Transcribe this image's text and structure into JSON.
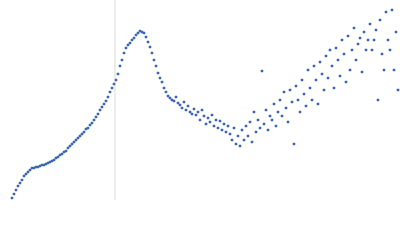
{
  "chart_data": {
    "type": "scatter",
    "color": "#3b66b5",
    "xlim": [
      0,
      400
    ],
    "ylim": [
      0,
      200
    ],
    "x": [
      12,
      14,
      16,
      18,
      20,
      22,
      24,
      26,
      28,
      30,
      32,
      34,
      36,
      38,
      40,
      42,
      44,
      46,
      48,
      50,
      52,
      54,
      56,
      58,
      60,
      62,
      64,
      66,
      68,
      70,
      72,
      74,
      76,
      78,
      80,
      82,
      84,
      86,
      88,
      90,
      92,
      94,
      96,
      98,
      100,
      102,
      104,
      106,
      108,
      110,
      112,
      114,
      116,
      118,
      120,
      122,
      124,
      126,
      128,
      130,
      132,
      134,
      136,
      138,
      140,
      142,
      144,
      146,
      148,
      150,
      152,
      154,
      156,
      158,
      160,
      162,
      164,
      166,
      168,
      170,
      172,
      174,
      176,
      178,
      180,
      182,
      184,
      186,
      188,
      190,
      192,
      194,
      196,
      198,
      200,
      202,
      204,
      206,
      208,
      210,
      212,
      214,
      216,
      218,
      220,
      222,
      224,
      226,
      228,
      230,
      232,
      234,
      236,
      238,
      240,
      242,
      244,
      246,
      248,
      250,
      252,
      254,
      256,
      258,
      260,
      262,
      264,
      266,
      268,
      270,
      272,
      274,
      276,
      278,
      280,
      282,
      284,
      286,
      288,
      290,
      292,
      294,
      296,
      298,
      300,
      302,
      304,
      306,
      308,
      310,
      312,
      314,
      316,
      318,
      320,
      322,
      324,
      326,
      328,
      330,
      332,
      334,
      336,
      338,
      340,
      342,
      344,
      346,
      348,
      350,
      352,
      354,
      356,
      358,
      360,
      362,
      364,
      366,
      368,
      370,
      372,
      374,
      376,
      378,
      380,
      382,
      384,
      386,
      388,
      390,
      392,
      394,
      396,
      398
    ],
    "values": [
      2,
      6,
      10,
      14,
      17,
      20,
      24,
      26,
      28,
      30,
      32,
      32,
      33,
      33,
      34,
      35,
      35,
      36,
      37,
      38,
      39,
      40,
      42,
      43,
      45,
      46,
      48,
      49,
      52,
      54,
      56,
      58,
      60,
      62,
      64,
      66,
      68,
      71,
      72,
      75,
      77,
      80,
      83,
      86,
      90,
      93,
      96,
      99,
      103,
      108,
      112,
      116,
      120,
      126,
      134,
      140,
      147,
      152,
      155,
      157,
      160,
      162,
      165,
      167,
      169,
      168,
      167,
      163,
      158,
      153,
      147,
      140,
      134,
      127,
      122,
      118,
      112,
      108,
      104,
      102,
      100,
      99,
      103,
      97,
      95,
      92,
      98,
      90,
      94,
      88,
      86,
      91,
      85,
      88,
      80,
      90,
      84,
      76,
      82,
      78,
      85,
      74,
      80,
      72,
      79,
      70,
      76,
      68,
      74,
      66,
      60,
      72,
      56,
      64,
      54,
      70,
      60,
      74,
      64,
      78,
      58,
      88,
      68,
      80,
      72,
      129,
      76,
      90,
      70,
      84,
      80,
      96,
      74,
      88,
      100,
      84,
      108,
      92,
      78,
      110,
      98,
      56,
      114,
      100,
      88,
      120,
      106,
      94,
      130,
      112,
      100,
      134,
      120,
      96,
      138,
      126,
      110,
      144,
      122,
      150,
      134,
      112,
      152,
      140,
      124,
      160,
      146,
      118,
      164,
      130,
      150,
      172,
      140,
      156,
      162,
      128,
      168,
      150,
      160,
      176,
      150,
      160,
      170,
      100,
      180,
      146,
      130,
      188,
      160,
      150,
      190,
      130,
      168,
      110
    ]
  }
}
